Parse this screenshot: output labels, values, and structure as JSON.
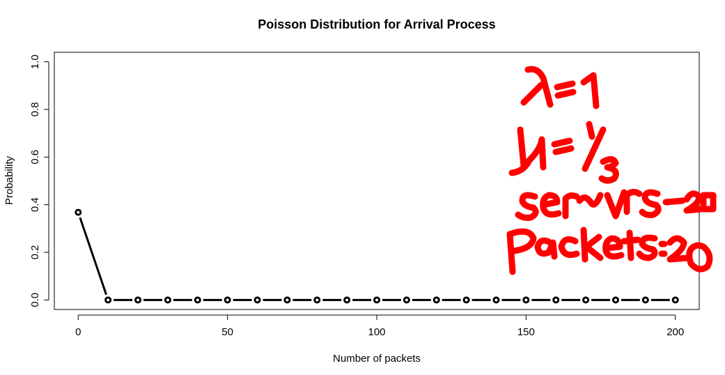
{
  "chart_data": {
    "type": "line",
    "title": "Poisson Distribution for Arrival Process",
    "xlabel": "Number of packets",
    "ylabel": "Probability",
    "xlim": [
      -8,
      208
    ],
    "ylim": [
      -0.04,
      1.04
    ],
    "x_ticks": [
      0,
      50,
      100,
      150,
      200
    ],
    "y_ticks": [
      0.0,
      0.2,
      0.4,
      0.6,
      0.8,
      1.0
    ],
    "x_tick_labels": [
      "0",
      "50",
      "100",
      "150",
      "200"
    ],
    "y_tick_labels": [
      "0.0",
      "0.2",
      "0.4",
      "0.6",
      "0.8",
      "1.0"
    ],
    "grid": false,
    "series": [
      {
        "x": [
          0,
          10,
          20,
          30,
          40,
          50,
          60,
          70,
          80,
          90,
          100,
          110,
          120,
          130,
          140,
          150,
          160,
          170,
          180,
          190,
          200
        ],
        "values": [
          0.368,
          0,
          0,
          0,
          0,
          0,
          0,
          0,
          0,
          0,
          0,
          0,
          0,
          0,
          0,
          0,
          0,
          0,
          0,
          0,
          0
        ]
      }
    ],
    "annotations": {
      "color": "#ff0000",
      "style": "handwritten",
      "lines": [
        "λ= 1",
        "μ= 1/3",
        "servers=20",
        "Packets=20"
      ]
    }
  }
}
